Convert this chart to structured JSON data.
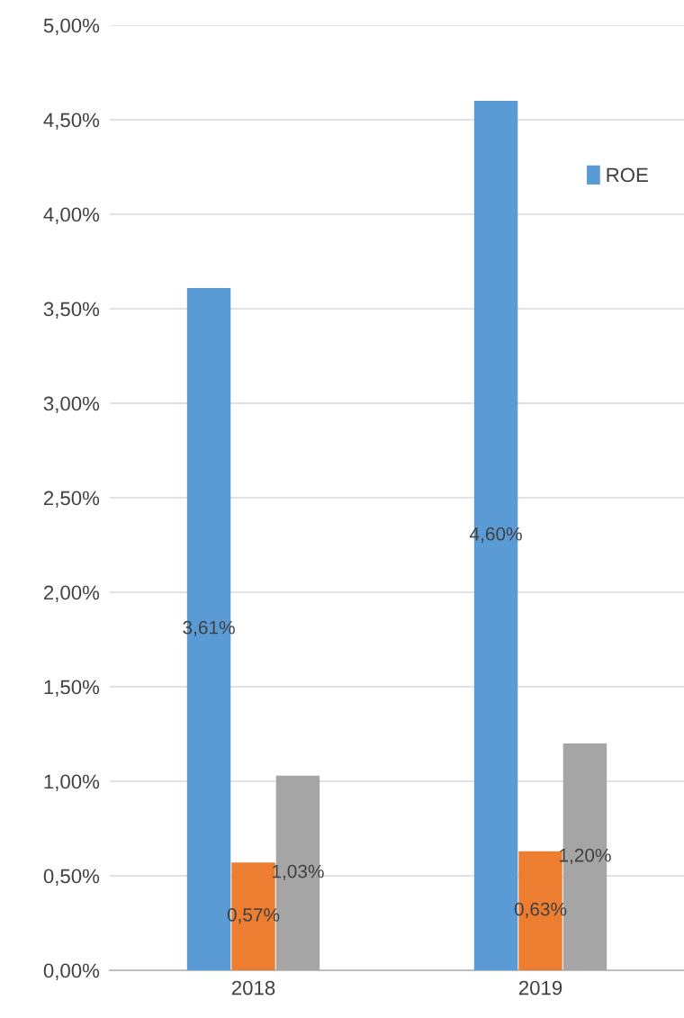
{
  "chart_data": {
    "type": "bar",
    "categories": [
      "2018",
      "2019"
    ],
    "series": [
      {
        "name": "ROE",
        "color": "#5b9bd5",
        "values": [
          3.61,
          4.6
        ],
        "value_labels": [
          "3,61%",
          "4,60%"
        ]
      },
      {
        "color": "#ed7d31",
        "values": [
          0.57,
          0.63
        ],
        "value_labels": [
          "0,57%",
          "0,63%"
        ]
      },
      {
        "color": "#a5a5a5",
        "values": [
          1.03,
          1.2
        ],
        "value_labels": [
          "1,03%",
          "1,20%"
        ]
      }
    ],
    "ylim": [
      0,
      5
    ],
    "yticks": [
      {
        "value": 0,
        "label": "0,00%"
      },
      {
        "value": 0.5,
        "label": "0,50%"
      },
      {
        "value": 1,
        "label": "1,00%"
      },
      {
        "value": 1.5,
        "label": "1,50%"
      },
      {
        "value": 2,
        "label": "2,00%"
      },
      {
        "value": 2.5,
        "label": "2,50%"
      },
      {
        "value": 3,
        "label": "3,00%"
      },
      {
        "value": 3.5,
        "label": "3,50%"
      },
      {
        "value": 4,
        "label": "4,00%"
      },
      {
        "value": 4.5,
        "label": "4,50%"
      },
      {
        "value": 5,
        "label": "5,00%"
      }
    ],
    "grid": "y",
    "legend": "top right"
  }
}
